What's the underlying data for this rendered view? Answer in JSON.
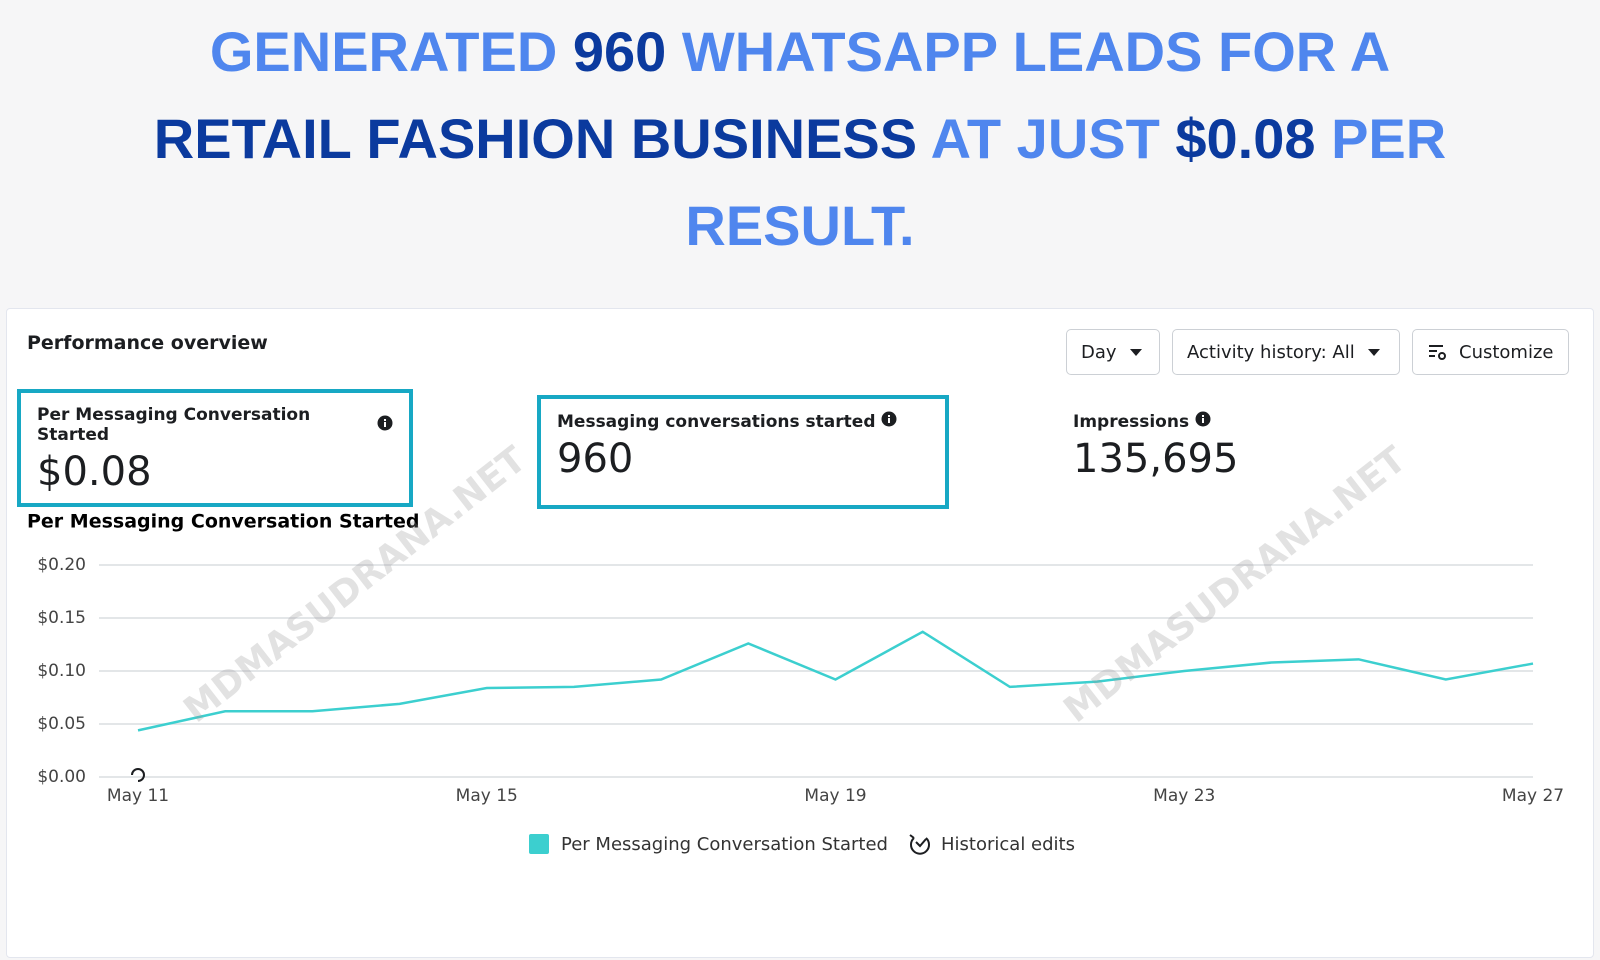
{
  "header": {
    "title_lines": [
      [
        {
          "text": "GENERATED ",
          "color": "#4f86ee"
        },
        {
          "text": "960",
          "color": "#0b3a9e"
        },
        {
          "text": " WHATSAPP LEADS FOR A",
          "color": "#4f86ee"
        }
      ],
      [
        {
          "text": "RETAIL FASHION BUSINESS",
          "color": "#0b3a9e"
        },
        {
          "text": " AT JUST ",
          "color": "#4f86ee"
        },
        {
          "text": "$0.08",
          "color": "#0b3a9e"
        },
        {
          "text": " PER",
          "color": "#4f86ee"
        }
      ],
      [
        {
          "text": "RESULT.",
          "color": "#4f86ee"
        }
      ]
    ]
  },
  "panel": {
    "title": "Performance overview",
    "controls": {
      "period": "Day",
      "activity": "Activity history: All",
      "customize": "Customize"
    },
    "metrics": [
      {
        "label": "Per Messaging Conversation Started",
        "value": "$0.08",
        "highlighted": true
      },
      {
        "label": "Messaging conversations started",
        "value": "960",
        "highlighted": true
      },
      {
        "label": "Impressions",
        "value": "135,695",
        "highlighted": false
      }
    ]
  },
  "watermark": "MDMASUDRANA.NET",
  "chart_data": {
    "type": "line",
    "title": "Per Messaging Conversation Started",
    "categories": [
      "May 11",
      null,
      null,
      null,
      "May 15",
      null,
      null,
      null,
      "May 19",
      null,
      null,
      null,
      "May 23",
      null,
      null,
      null,
      "May 27"
    ],
    "series": [
      {
        "name": "Per Messaging Conversation Started",
        "color": "#3ccfcf",
        "values": [
          0.044,
          0.062,
          0.062,
          0.069,
          0.084,
          0.085,
          0.092,
          0.126,
          0.092,
          0.137,
          0.085,
          0.09,
          0.1,
          0.108,
          0.111,
          0.092,
          0.107
        ]
      }
    ],
    "ylim": [
      0,
      0.2
    ],
    "yticks": [
      {
        "value": 0,
        "label": "$0.00"
      },
      {
        "value": 0.05,
        "label": "$0.05"
      },
      {
        "value": 0.1,
        "label": "$0.10"
      },
      {
        "value": 0.15,
        "label": "$0.15"
      },
      {
        "value": 0.2,
        "label": "$0.20"
      }
    ],
    "grid": true,
    "historical_edits_label": "Historical edits"
  }
}
